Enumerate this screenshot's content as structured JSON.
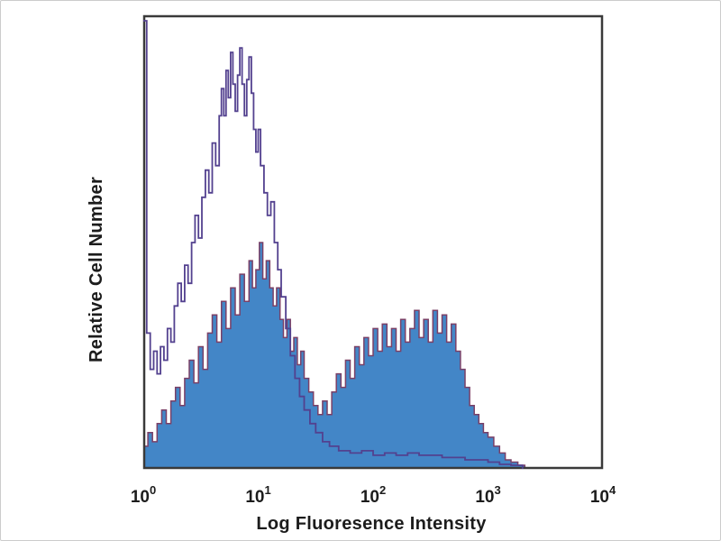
{
  "chart_data": {
    "type": "line",
    "title": "",
    "xlabel": "Log Fluoresence Intensity",
    "ylabel": "Relative Cell Number",
    "x_scale": "log",
    "xlim_log_decades": [
      0,
      4
    ],
    "ylim": [
      0,
      1
    ],
    "grid": false,
    "legend": "none",
    "frame_color": "#3a3a3a",
    "x_ticks": [
      {
        "base": "10",
        "exp": "0"
      },
      {
        "base": "10",
        "exp": "1"
      },
      {
        "base": "10",
        "exp": "2"
      },
      {
        "base": "10",
        "exp": "3"
      },
      {
        "base": "10",
        "exp": "4"
      }
    ],
    "series": [
      {
        "name": "filled-blue-histogram",
        "style": "filled",
        "fill_color": "#4386c7",
        "edge_color": "#7a4067",
        "points": [
          [
            0.0,
            0.05
          ],
          [
            0.04,
            0.08
          ],
          [
            0.08,
            0.06
          ],
          [
            0.12,
            0.1
          ],
          [
            0.16,
            0.13
          ],
          [
            0.2,
            0.1
          ],
          [
            0.24,
            0.15
          ],
          [
            0.28,
            0.18
          ],
          [
            0.32,
            0.14
          ],
          [
            0.36,
            0.2
          ],
          [
            0.4,
            0.24
          ],
          [
            0.44,
            0.19
          ],
          [
            0.48,
            0.27
          ],
          [
            0.52,
            0.22
          ],
          [
            0.56,
            0.3
          ],
          [
            0.6,
            0.34
          ],
          [
            0.64,
            0.28
          ],
          [
            0.68,
            0.37
          ],
          [
            0.72,
            0.31
          ],
          [
            0.76,
            0.4
          ],
          [
            0.8,
            0.34
          ],
          [
            0.84,
            0.43
          ],
          [
            0.88,
            0.37
          ],
          [
            0.92,
            0.46
          ],
          [
            0.95,
            0.4
          ],
          [
            0.98,
            0.44
          ],
          [
            1.01,
            0.5
          ],
          [
            1.04,
            0.42
          ],
          [
            1.07,
            0.46
          ],
          [
            1.1,
            0.4
          ],
          [
            1.13,
            0.36
          ],
          [
            1.16,
            0.4
          ],
          [
            1.19,
            0.33
          ],
          [
            1.22,
            0.29
          ],
          [
            1.25,
            0.33
          ],
          [
            1.28,
            0.26
          ],
          [
            1.31,
            0.29
          ],
          [
            1.34,
            0.23
          ],
          [
            1.37,
            0.26
          ],
          [
            1.4,
            0.2
          ],
          [
            1.44,
            0.17
          ],
          [
            1.48,
            0.14
          ],
          [
            1.52,
            0.12
          ],
          [
            1.56,
            0.15
          ],
          [
            1.6,
            0.12
          ],
          [
            1.64,
            0.17
          ],
          [
            1.68,
            0.21
          ],
          [
            1.72,
            0.18
          ],
          [
            1.76,
            0.24
          ],
          [
            1.8,
            0.2
          ],
          [
            1.84,
            0.27
          ],
          [
            1.88,
            0.23
          ],
          [
            1.92,
            0.29
          ],
          [
            1.96,
            0.25
          ],
          [
            2.0,
            0.31
          ],
          [
            2.04,
            0.26
          ],
          [
            2.08,
            0.32
          ],
          [
            2.12,
            0.27
          ],
          [
            2.16,
            0.31
          ],
          [
            2.2,
            0.26
          ],
          [
            2.24,
            0.33
          ],
          [
            2.28,
            0.28
          ],
          [
            2.32,
            0.31
          ],
          [
            2.36,
            0.35
          ],
          [
            2.4,
            0.29
          ],
          [
            2.44,
            0.33
          ],
          [
            2.48,
            0.28
          ],
          [
            2.52,
            0.35
          ],
          [
            2.56,
            0.3
          ],
          [
            2.6,
            0.34
          ],
          [
            2.64,
            0.28
          ],
          [
            2.68,
            0.32
          ],
          [
            2.72,
            0.26
          ],
          [
            2.76,
            0.22
          ],
          [
            2.8,
            0.18
          ],
          [
            2.84,
            0.14
          ],
          [
            2.88,
            0.12
          ],
          [
            2.92,
            0.1
          ],
          [
            2.96,
            0.08
          ],
          [
            3.0,
            0.07
          ],
          [
            3.05,
            0.05
          ],
          [
            3.1,
            0.035
          ],
          [
            3.15,
            0.02
          ],
          [
            3.2,
            0.015
          ],
          [
            3.26,
            0.008
          ],
          [
            3.32,
            0.0
          ]
        ]
      },
      {
        "name": "open-purple-histogram",
        "style": "open",
        "line_color": "#53418f",
        "points": [
          [
            0.0,
            0.99
          ],
          [
            0.02,
            0.99
          ],
          [
            0.03,
            0.3
          ],
          [
            0.06,
            0.22
          ],
          [
            0.09,
            0.26
          ],
          [
            0.12,
            0.21
          ],
          [
            0.15,
            0.27
          ],
          [
            0.18,
            0.24
          ],
          [
            0.21,
            0.31
          ],
          [
            0.24,
            0.28
          ],
          [
            0.27,
            0.36
          ],
          [
            0.3,
            0.41
          ],
          [
            0.33,
            0.37
          ],
          [
            0.36,
            0.45
          ],
          [
            0.39,
            0.41
          ],
          [
            0.42,
            0.5
          ],
          [
            0.45,
            0.56
          ],
          [
            0.48,
            0.51
          ],
          [
            0.51,
            0.6
          ],
          [
            0.54,
            0.66
          ],
          [
            0.57,
            0.61
          ],
          [
            0.6,
            0.72
          ],
          [
            0.63,
            0.67
          ],
          [
            0.66,
            0.78
          ],
          [
            0.68,
            0.84
          ],
          [
            0.7,
            0.78
          ],
          [
            0.72,
            0.88
          ],
          [
            0.74,
            0.82
          ],
          [
            0.76,
            0.92
          ],
          [
            0.78,
            0.85
          ],
          [
            0.8,
            0.79
          ],
          [
            0.82,
            0.87
          ],
          [
            0.84,
            0.93
          ],
          [
            0.86,
            0.85
          ],
          [
            0.88,
            0.78
          ],
          [
            0.9,
            0.86
          ],
          [
            0.92,
            0.91
          ],
          [
            0.94,
            0.83
          ],
          [
            0.96,
            0.75
          ],
          [
            0.98,
            0.7
          ],
          [
            1.0,
            0.75
          ],
          [
            1.02,
            0.67
          ],
          [
            1.05,
            0.61
          ],
          [
            1.08,
            0.56
          ],
          [
            1.11,
            0.59
          ],
          [
            1.14,
            0.5
          ],
          [
            1.17,
            0.44
          ],
          [
            1.2,
            0.38
          ],
          [
            1.24,
            0.31
          ],
          [
            1.28,
            0.25
          ],
          [
            1.32,
            0.2
          ],
          [
            1.36,
            0.16
          ],
          [
            1.4,
            0.13
          ],
          [
            1.45,
            0.1
          ],
          [
            1.5,
            0.08
          ],
          [
            1.56,
            0.06
          ],
          [
            1.62,
            0.05
          ],
          [
            1.7,
            0.04
          ],
          [
            1.8,
            0.035
          ],
          [
            1.9,
            0.04
          ],
          [
            2.0,
            0.03
          ],
          [
            2.1,
            0.035
          ],
          [
            2.2,
            0.03
          ],
          [
            2.3,
            0.035
          ],
          [
            2.4,
            0.03
          ],
          [
            2.5,
            0.03
          ],
          [
            2.6,
            0.025
          ],
          [
            2.7,
            0.025
          ],
          [
            2.8,
            0.02
          ],
          [
            2.9,
            0.02
          ],
          [
            3.0,
            0.015
          ],
          [
            3.1,
            0.01
          ],
          [
            3.2,
            0.008
          ],
          [
            3.3,
            0.0
          ]
        ]
      }
    ]
  }
}
